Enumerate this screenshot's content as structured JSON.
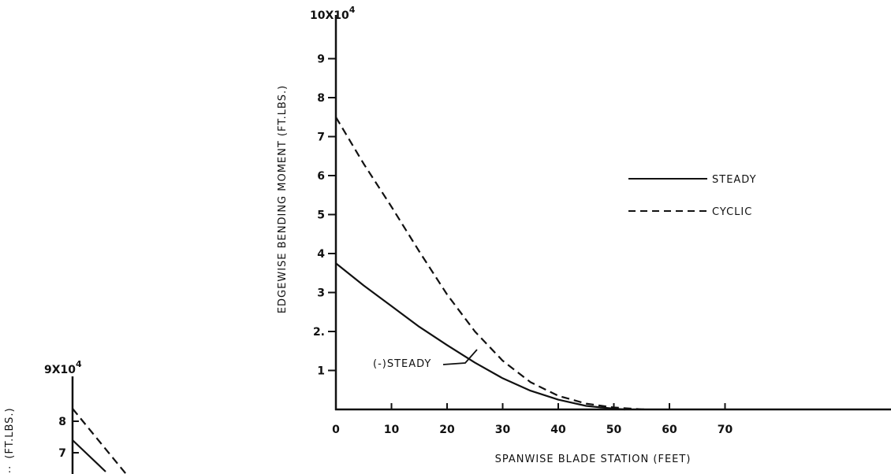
{
  "chart_data": [
    {
      "type": "line",
      "title": "",
      "ylabel": "EDGEWISE BENDING MOMENT (FT.LBS.)",
      "xlabel": "SPANWISE BLADE STATION (FEET)",
      "y_multiplier_label": "10X10",
      "y_multiplier_exp": "4",
      "xlim": [
        0,
        75
      ],
      "ylim": [
        0,
        100000
      ],
      "x_ticks": [
        0,
        10,
        20,
        30,
        40,
        50,
        60,
        70
      ],
      "x_tick_labels": [
        "0",
        "10",
        "20",
        "30",
        "40",
        "50",
        "60",
        "70"
      ],
      "y_ticks": [
        10000,
        20000,
        30000,
        40000,
        50000,
        60000,
        70000,
        80000,
        90000
      ],
      "y_tick_labels": [
        "1",
        "2.",
        "3",
        "4",
        "5",
        "6",
        "7",
        "8",
        "9"
      ],
      "grid": false,
      "legend_position": "right",
      "series": [
        {
          "name": "STEADY",
          "style": "solid",
          "x": [
            0,
            5,
            10,
            15,
            20,
            25,
            30,
            35,
            40,
            45,
            50,
            52
          ],
          "y": [
            37500,
            31800,
            26500,
            21200,
            16500,
            12000,
            8000,
            4800,
            2500,
            900,
            200,
            0
          ]
        },
        {
          "name": "CYCLIC",
          "style": "dashed",
          "x": [
            0,
            5,
            10,
            15,
            20,
            25,
            30,
            35,
            40,
            45,
            50,
            55,
            56
          ],
          "y": [
            75000,
            63000,
            52000,
            40500,
            29500,
            20000,
            12500,
            7000,
            3500,
            1500,
            500,
            50,
            0
          ]
        }
      ],
      "annotations": [
        {
          "text": "(-)STEADY"
        }
      ]
    },
    {
      "type": "line",
      "title": "",
      "ylabel": "(FT.LBS.)",
      "y_multiplier_label": "9X10",
      "y_multiplier_exp": "4",
      "y_ticks": [
        70000,
        80000
      ],
      "y_tick_labels": [
        "7",
        "8"
      ],
      "series": [
        {
          "name": "",
          "style": "solid",
          "x": [
            0,
            0.7
          ],
          "y": [
            74000,
            64000
          ]
        },
        {
          "name": "",
          "style": "dashed",
          "x": [
            0,
            1.2
          ],
          "y": [
            84000,
            62000
          ]
        }
      ]
    }
  ]
}
